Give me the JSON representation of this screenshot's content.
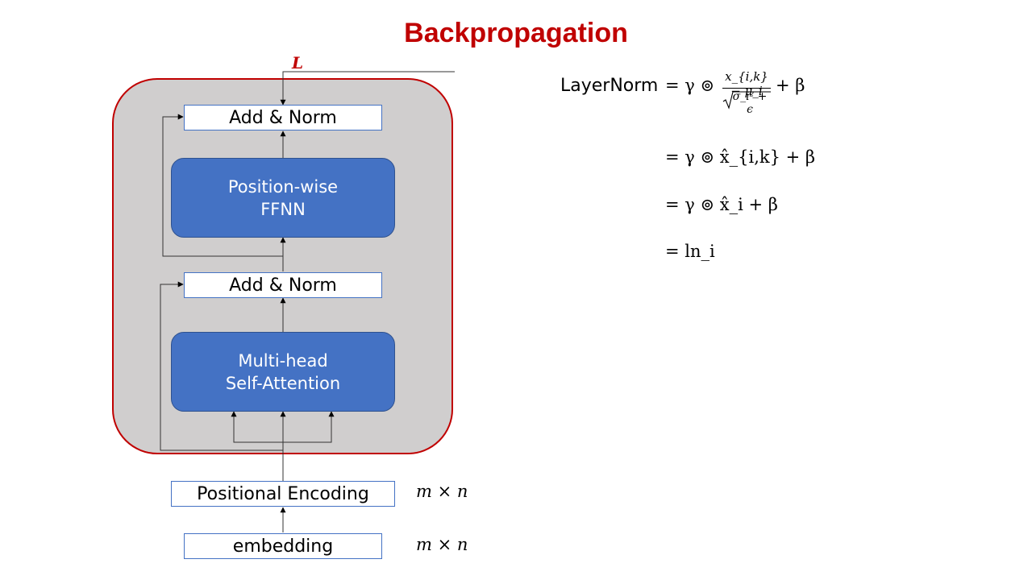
{
  "title": "Backpropagation",
  "diagram": {
    "loss_label": "L",
    "add_norm_top": "Add & Norm",
    "ffnn_line1": "Position-wise",
    "ffnn_line2": "FFNN",
    "add_norm_bottom": "Add & Norm",
    "attention_line1": "Multi-head",
    "attention_line2": "Self-Attention",
    "positional_encoding": "Positional Encoding",
    "embedding": "embedding",
    "pe_dim": "m × n",
    "emb_dim": "m × n"
  },
  "equations": {
    "lhs": "LayerNorm",
    "line1": {
      "eq": "= γ ⊚",
      "numerator": "x_{i,k} − μ_i",
      "denominator": "σ_i² + ϵ",
      "tail": "+ β"
    },
    "line2": "= γ ⊚ x̂_{i,k} + β",
    "line3": "= γ ⊚ x̂_i + β",
    "line4": "= ln_i"
  }
}
